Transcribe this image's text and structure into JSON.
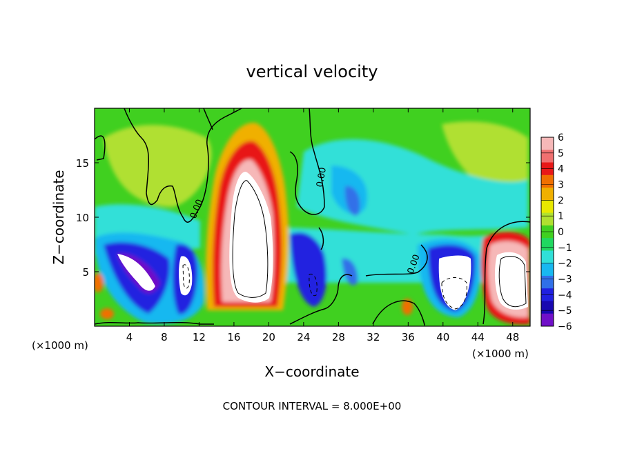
{
  "chart_data": {
    "type": "heatmap",
    "title": "vertical velocity",
    "xlabel": "X−coordinate",
    "ylabel": "Z−coordinate",
    "x_unit_left": "(×1000 m)",
    "x_unit_right": "(×1000 m)",
    "footer": "CONTOUR INTERVAL = 8.000E+00",
    "xlim": [
      0,
      50
    ],
    "ylim": [
      0,
      20
    ],
    "x_ticks": [
      4,
      8,
      12,
      16,
      20,
      24,
      28,
      32,
      36,
      40,
      44,
      48
    ],
    "x_tick_labels": [
      "4",
      "8",
      "12",
      "16",
      "20",
      "24",
      "28",
      "32",
      "36",
      "40",
      "44",
      "48"
    ],
    "y_ticks": [
      5,
      10,
      15
    ],
    "y_tick_labels": [
      "5",
      "10",
      "15"
    ],
    "contour_labels": [
      "0.00",
      "0.00",
      "0.00"
    ],
    "colorbar": {
      "range": [
        -6,
        6
      ],
      "labels": [
        "6",
        "5",
        "4",
        "3",
        "2",
        "1",
        "0",
        "−1",
        "−2",
        "−3",
        "−4",
        "−5",
        "−6"
      ],
      "colors": [
        "#f6b8b8",
        "#f07070",
        "#e81818",
        "#f07000",
        "#f0b000",
        "#e8e800",
        "#b0e030",
        "#40d020",
        "#20d860",
        "#30e0d8",
        "#18b8f0",
        "#3070e8",
        "#2020e0",
        "#1808b0",
        "#7010c8"
      ]
    },
    "features": [
      {
        "name": "updraft core",
        "x": 18,
        "z_top": 17,
        "max": 8
      },
      {
        "name": "updraft",
        "x": 47.5,
        "z_top": 8,
        "max": 8
      },
      {
        "name": "downdraft",
        "x": 5,
        "z_top": 8,
        "min": -8
      },
      {
        "name": "downdraft",
        "x": 11,
        "z_top": 7.5,
        "min": -8
      },
      {
        "name": "downdraft",
        "x": 25,
        "z_top": 7.5,
        "min": -6
      },
      {
        "name": "downdraft",
        "x": 41,
        "z_top": 8,
        "min": -8
      }
    ]
  }
}
